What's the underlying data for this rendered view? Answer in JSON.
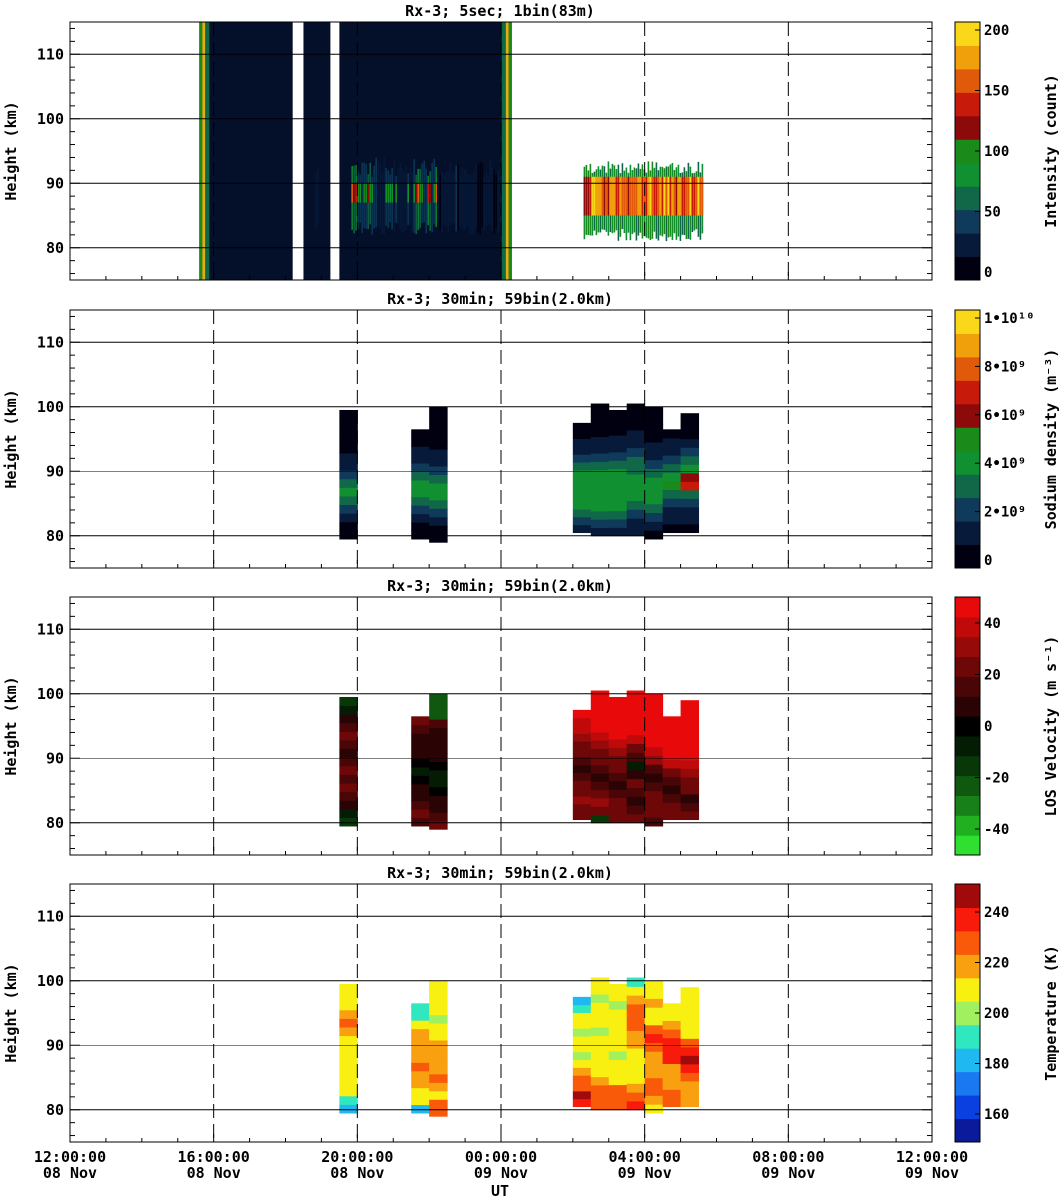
{
  "figure": {
    "xlabel": "UT",
    "ylabel": "Height (km)",
    "x_ticks": [
      {
        "time": "12:00:00",
        "date": "08 Nov"
      },
      {
        "time": "16:00:00",
        "date": "08 Nov"
      },
      {
        "time": "20:00:00",
        "date": "08 Nov"
      },
      {
        "time": "00:00:00",
        "date": "09 Nov"
      },
      {
        "time": "04:00:00",
        "date": "09 Nov"
      },
      {
        "time": "08:00:00",
        "date": "09 Nov"
      },
      {
        "time": "12:00:00",
        "date": "09 Nov"
      }
    ],
    "y_ticks": [
      "80",
      "90",
      "100",
      "110"
    ]
  },
  "chart_data": [
    {
      "type": "heatmap",
      "title": "Rx-3;  5sec; 1bin(83m)",
      "ylabel": "Height (km)",
      "xlim_hours_from_start": [
        0,
        24
      ],
      "ylim": [
        75,
        115
      ],
      "grid": true,
      "colorbar": {
        "label": "Intensity (count)",
        "range": [
          0,
          200
        ],
        "ticks": [
          "200",
          "150",
          "100",
          "50",
          "0"
        ],
        "colors": [
          "#000010",
          "#081a3a",
          "#0f3a5a",
          "#106848",
          "#109030",
          "#1a8a1a",
          "#8c0a0a",
          "#c81a0a",
          "#e05a0a",
          "#f0a00a",
          "#f8d818"
        ]
      },
      "data_segments_hours": [
        [
          3.6,
          6.2
        ],
        [
          6.5,
          7.25
        ],
        [
          7.5,
          12.3
        ]
      ],
      "layer_km": [
        82,
        95
      ],
      "peak_km": 88.5
    },
    {
      "type": "heatmap",
      "title": "Rx-3; 30min; 59bin(2.0km)",
      "ylabel": "Height (km)",
      "ylim": [
        75,
        115
      ],
      "grid": true,
      "colorbar": {
        "label": "Sodium density (m⁻³)",
        "range": [
          0,
          10000000000.0
        ],
        "ticks": [
          "1•10¹⁰",
          "8•10⁹",
          "6•10⁹",
          "4•10⁹",
          "2•10⁹",
          "0"
        ],
        "colors": [
          "#000010",
          "#081a3a",
          "#0f3a5a",
          "#106848",
          "#109030",
          "#1a8a1a",
          "#8c0a0a",
          "#c81a0a",
          "#e05a0a",
          "#f0a00a",
          "#f8d818"
        ]
      },
      "columns": [
        {
          "x": 7.75,
          "bottom": 79.5,
          "top": 99.5,
          "values": [
            0.3,
            0.8,
            1.5,
            2.5,
            3.5,
            4.0,
            3.5,
            2.5,
            1.5,
            1.0,
            0.6,
            0.3,
            0.2,
            0.2,
            0.2
          ]
        },
        {
          "x": 9.75,
          "bottom": 79.5,
          "top": 96.5,
          "values": [
            0.3,
            0.8,
            1.5,
            2.5,
            3.5,
            4.2,
            4.0,
            3.5,
            2.5,
            1.5,
            1.0,
            0.6,
            0.3
          ]
        },
        {
          "x": 10.25,
          "bottom": 79.0,
          "top": 100.0,
          "values": [
            0.3,
            0.8,
            1.5,
            2.5,
            3.5,
            4.5,
            4.2,
            3.5,
            2.5,
            1.5,
            1.0,
            0.6,
            0.4,
            0.3,
            0.3,
            0.2
          ]
        },
        {
          "x": 14.25,
          "bottom": 80.5,
          "top": 97.5,
          "values": [
            1.0,
            2.0,
            3.0,
            4.0,
            4.5,
            4.5,
            4.2,
            3.8,
            3.0,
            2.5,
            1.5,
            1.0,
            0.6,
            0.4
          ]
        },
        {
          "x": 14.75,
          "bottom": 80.0,
          "top": 100.5,
          "values": [
            1.0,
            2.0,
            3.0,
            4.0,
            4.5,
            4.5,
            4.2,
            3.8,
            3.0,
            2.5,
            1.5,
            1.0,
            0.6,
            0.4,
            0.3,
            0.2
          ]
        },
        {
          "x": 15.25,
          "bottom": 80.0,
          "top": 99.5,
          "values": [
            1.0,
            2.0,
            3.0,
            4.0,
            4.5,
            4.5,
            4.2,
            3.8,
            3.0,
            2.5,
            1.5,
            1.0,
            0.6,
            0.4,
            0.3
          ]
        },
        {
          "x": 15.75,
          "bottom": 80.0,
          "top": 100.5,
          "values": [
            1.0,
            1.8,
            2.5,
            3.5,
            4.2,
            4.5,
            4.2,
            3.5,
            3.0,
            2.0,
            1.5,
            1.0,
            0.6,
            0.4,
            0.3
          ]
        },
        {
          "x": 16.25,
          "bottom": 79.5,
          "top": 100.0,
          "values": [
            0.8,
            1.5,
            2.5,
            3.5,
            4.0,
            4.2,
            4.0,
            3.5,
            2.5,
            1.8,
            1.2,
            0.8,
            0.5,
            0.3,
            0.2
          ]
        },
        {
          "x": 16.75,
          "bottom": 80.5,
          "top": 96.5,
          "values": [
            0.8,
            1.2,
            1.8,
            2.5,
            3.5,
            5.0,
            4.5,
            3.5,
            2.5,
            1.5,
            1.0,
            0.5
          ]
        },
        {
          "x": 17.25,
          "bottom": 80.5,
          "top": 99.0,
          "values": [
            0.8,
            1.2,
            1.8,
            2.5,
            3.5,
            6.5,
            5.5,
            4.0,
            3.0,
            2.0,
            1.2,
            0.8,
            0.5,
            0.3
          ]
        }
      ]
    },
    {
      "type": "heatmap",
      "title": "Rx-3; 30min; 59bin(2.0km)",
      "ylabel": "Height (km)",
      "ylim": [
        75,
        115
      ],
      "grid": true,
      "colorbar": {
        "label": "LOS Velocity (m s⁻¹)",
        "range": [
          -50,
          50
        ],
        "ticks": [
          "40",
          "20",
          "0",
          "-20",
          "-40"
        ],
        "colors": [
          "#30e030",
          "#20b020",
          "#188018",
          "#105810",
          "#083808",
          "#041c04",
          "#000000",
          "#2a0404",
          "#4a0606",
          "#6e0808",
          "#960a0a",
          "#c00a0a",
          "#e80a0a"
        ]
      },
      "columns": [
        {
          "x": 7.75,
          "bottom": 79.5,
          "top": 99.5,
          "values": [
            -15,
            -5,
            10,
            15,
            20,
            15,
            20,
            15,
            10,
            15,
            20,
            15,
            10,
            -10,
            -15
          ]
        },
        {
          "x": 9.75,
          "bottom": 79.5,
          "top": 96.5,
          "values": [
            15,
            20,
            15,
            10,
            5,
            0,
            -5,
            0,
            5,
            10,
            5,
            15,
            20
          ]
        },
        {
          "x": 10.25,
          "bottom": 79.0,
          "top": 100.0,
          "values": [
            20,
            15,
            10,
            5,
            0,
            -10,
            -5,
            0,
            5,
            10,
            5,
            10,
            15,
            -20,
            -20,
            -25
          ]
        },
        {
          "x": 14.25,
          "bottom": 80.5,
          "top": 97.5,
          "values": [
            20,
            25,
            30,
            25,
            20,
            15,
            10,
            15,
            20,
            25,
            30,
            35,
            40,
            45
          ]
        },
        {
          "x": 14.75,
          "bottom": 80.0,
          "top": 100.5,
          "values": [
            -15,
            25,
            30,
            20,
            15,
            10,
            15,
            20,
            25,
            30,
            40,
            45,
            50,
            50,
            50,
            50
          ]
        },
        {
          "x": 15.25,
          "bottom": 80.0,
          "top": 99.5,
          "values": [
            20,
            25,
            20,
            15,
            10,
            15,
            20,
            25,
            30,
            35,
            45,
            50,
            50,
            50,
            50
          ]
        },
        {
          "x": 15.75,
          "bottom": 80.0,
          "top": 100.5,
          "values": [
            20,
            15,
            10,
            15,
            20,
            10,
            -10,
            15,
            25,
            35,
            45,
            50,
            50,
            50,
            50
          ]
        },
        {
          "x": 16.25,
          "bottom": 79.5,
          "top": 100.0,
          "values": [
            15,
            20,
            25,
            20,
            15,
            10,
            15,
            30,
            40,
            50,
            50,
            50,
            50,
            50,
            50
          ]
        },
        {
          "x": 16.75,
          "bottom": 80.5,
          "top": 96.5,
          "values": [
            20,
            25,
            15,
            10,
            15,
            25,
            35,
            45,
            50,
            50,
            50,
            50
          ]
        },
        {
          "x": 17.25,
          "bottom": 80.5,
          "top": 99.0,
          "values": [
            20,
            15,
            10,
            20,
            25,
            30,
            35,
            45,
            50,
            50,
            50,
            50,
            50,
            50
          ]
        }
      ]
    },
    {
      "type": "heatmap",
      "title": "Rx-3; 30min; 59bin(2.0km)",
      "ylabel": "Height (km)",
      "ylim": [
        75,
        115
      ],
      "grid": true,
      "colorbar": {
        "label": "Temperature (K)",
        "range": [
          150,
          250
        ],
        "ticks": [
          "240",
          "220",
          "200",
          "180",
          "160"
        ],
        "colors": [
          "#0a1a9a",
          "#0a40e0",
          "#1a78f0",
          "#20b8f0",
          "#30e8c0",
          "#a0f060",
          "#f8f010",
          "#f8a010",
          "#f85a0a",
          "#f81a0a",
          "#a00a0a"
        ]
      },
      "columns": [
        {
          "x": 7.75,
          "bottom": 79.5,
          "top": 99.5,
          "values": [
            180,
            195,
            205,
            205,
            205,
            205,
            205,
            205,
            205,
            220,
            225,
            215,
            205,
            205,
            205
          ]
        },
        {
          "x": 9.75,
          "bottom": 79.5,
          "top": 96.5,
          "values": [
            185,
            205,
            205,
            215,
            220,
            225,
            220,
            215,
            220,
            215,
            205,
            195,
            195
          ]
        },
        {
          "x": 10.25,
          "bottom": 79.0,
          "top": 100.0,
          "values": [
            230,
            230,
            210,
            220,
            225,
            215,
            220,
            220,
            215,
            210,
            205,
            200,
            205,
            205,
            205,
            205
          ]
        },
        {
          "x": 14.25,
          "bottom": 80.5,
          "top": 97.5,
          "values": [
            240,
            245,
            230,
            225,
            215,
            205,
            200,
            205,
            210,
            200,
            210,
            205,
            190,
            185
          ]
        },
        {
          "x": 14.75,
          "bottom": 80.0,
          "top": 100.5,
          "values": [
            230,
            230,
            225,
            215,
            210,
            205,
            205,
            205,
            210,
            200,
            205,
            205,
            205,
            200,
            205,
            205
          ]
        },
        {
          "x": 15.25,
          "bottom": 80.0,
          "top": 99.5,
          "values": [
            230,
            230,
            225,
            210,
            205,
            205,
            200,
            210,
            205,
            205,
            205,
            210,
            200,
            205,
            205
          ]
        },
        {
          "x": 15.75,
          "bottom": 80.0,
          "top": 100.5,
          "values": [
            240,
            230,
            220,
            205,
            210,
            205,
            205,
            215,
            220,
            230,
            230,
            225,
            220,
            205,
            195
          ]
        },
        {
          "x": 16.25,
          "bottom": 79.5,
          "top": 100.0,
          "values": [
            205,
            220,
            230,
            225,
            220,
            215,
            220,
            230,
            240,
            230,
            205,
            210,
            220,
            205,
            205
          ]
        },
        {
          "x": 16.75,
          "bottom": 80.5,
          "top": 96.5,
          "values": [
            225,
            230,
            220,
            215,
            220,
            235,
            240,
            240,
            230,
            220,
            205,
            205
          ]
        },
        {
          "x": 17.25,
          "bottom": 80.5,
          "top": 99.0,
          "values": [
            220,
            220,
            215,
            225,
            240,
            245,
            240,
            230,
            210,
            205,
            205,
            205,
            205,
            205
          ]
        }
      ]
    }
  ]
}
